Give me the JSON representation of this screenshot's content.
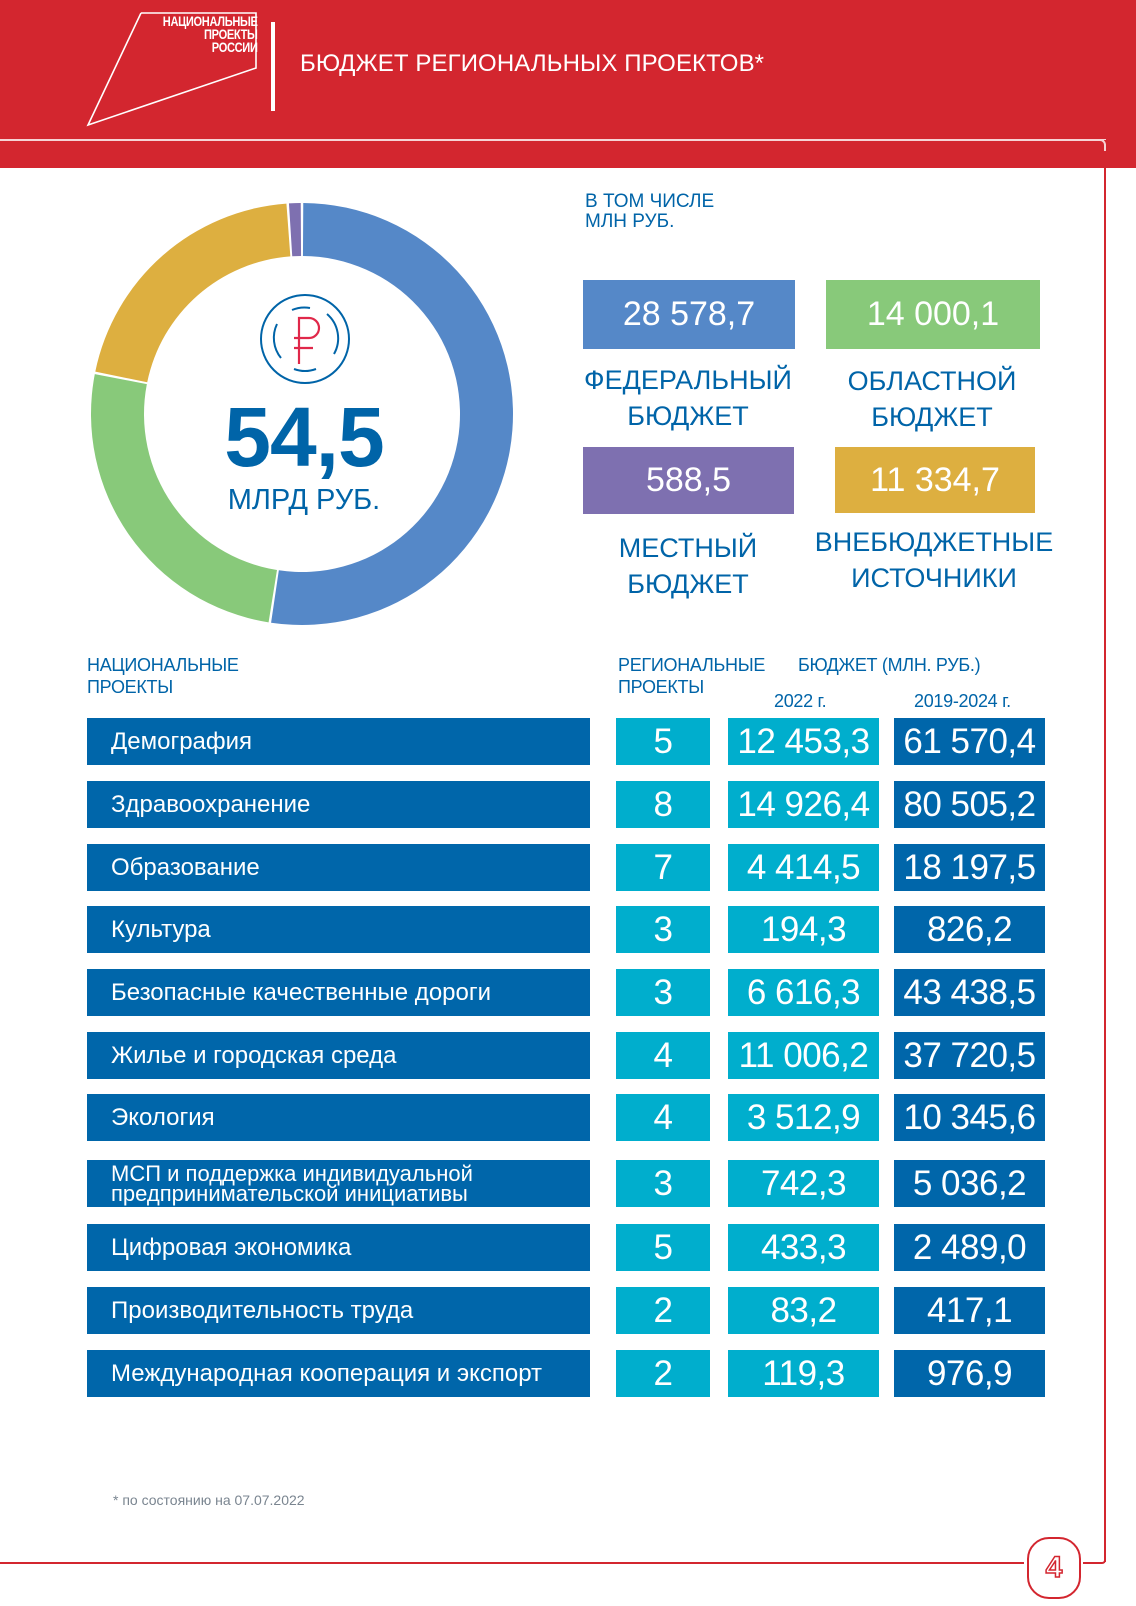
{
  "header": {
    "logo_lines": [
      "НАЦИОНАЛЬНЫЕ",
      "ПРОЕКТЫ",
      "РОССИИ"
    ],
    "title": "БЮДЖЕТ РЕГИОНАЛЬНЫХ ПРОЕКТОВ*"
  },
  "summary": {
    "total": "54,5",
    "total_unit": "МЛРД РУБ.",
    "icon": "ruble-coin-icon"
  },
  "legend": {
    "caption_line1": "В ТОМ ЧИСЛЕ",
    "caption_line2": "МЛН РУБ.",
    "items": [
      {
        "value": "28 578,7",
        "label_line1": "ФЕДЕРАЛЬНЫЙ",
        "label_line2": "БЮДЖЕТ",
        "color": "#5588C8"
      },
      {
        "value": "14 000,1",
        "label_line1": "ОБЛАСТНОЙ",
        "label_line2": "БЮДЖЕТ",
        "color": "#88C97A"
      },
      {
        "value": "588,5",
        "label_line1": "МЕСТНЫЙ",
        "label_line2": "БЮДЖЕТ",
        "color": "#7E70B0"
      },
      {
        "value": "11 334,7",
        "label_line1": "ВНЕБЮДЖЕТНЫЕ",
        "label_line2": "ИСТОЧНИКИ",
        "color": "#DDAF40"
      }
    ]
  },
  "chart_data": {
    "type": "pie",
    "subtype": "donut",
    "title": "54,5 МЛРД РУБ.",
    "unit": "млн руб.",
    "categories": [
      "Федеральный бюджет",
      "Областной бюджет",
      "Внебюджетные источники",
      "Местный бюджет"
    ],
    "values": [
      28578.7,
      14000.1,
      11334.7,
      588.5
    ],
    "colors": [
      "#5588C8",
      "#88C97A",
      "#DDAF40",
      "#7E70B0"
    ],
    "start": "top",
    "direction": "clockwise",
    "legend": "right"
  },
  "table": {
    "headers": {
      "national_line1": "НАЦИОНАЛЬНЫЕ",
      "national_line2": "ПРОЕКТЫ",
      "regional_line1": "РЕГИОНАЛЬНЫЕ",
      "regional_line2": "ПРОЕКТЫ",
      "budget": "БЮДЖЕТ (МЛН. РУБ.)",
      "year_2022": "2022 г.",
      "years_2019_2024": "2019-2024 г."
    },
    "rows": [
      {
        "name": "Демография",
        "regional": "5",
        "b2022": "12 453,3",
        "b2019_2024": "61 570,4"
      },
      {
        "name": "Здравоохранение",
        "regional": "8",
        "b2022": "14 926,4",
        "b2019_2024": "80 505,2"
      },
      {
        "name": "Образование",
        "regional": "7",
        "b2022": "4 414,5",
        "b2019_2024": "18 197,5"
      },
      {
        "name": "Культура",
        "regional": "3",
        "b2022": "194,3",
        "b2019_2024": "826,2"
      },
      {
        "name": "Безопасные качественные дороги",
        "regional": "3",
        "b2022": "6 616,3",
        "b2019_2024": "43 438,5"
      },
      {
        "name": "Жилье и городская среда",
        "regional": "4",
        "b2022": "11 006,2",
        "b2019_2024": "37 720,5"
      },
      {
        "name": "Экология",
        "regional": "4",
        "b2022": "3 512,9",
        "b2019_2024": "10 345,6"
      },
      {
        "name_line1": "МСП и поддержка индивидуальной",
        "name_line2": "предпринимательской инициативы",
        "regional": "3",
        "b2022": "742,3",
        "b2019_2024": "5 036,2"
      },
      {
        "name": "Цифровая экономика",
        "regional": "5",
        "b2022": "433,3",
        "b2019_2024": "2 489,0"
      },
      {
        "name": "Производительность труда",
        "regional": "2",
        "b2022": "83,2",
        "b2019_2024": "417,1"
      },
      {
        "name": "Международная кооперация и экспорт",
        "regional": "2",
        "b2022": "119,3",
        "b2019_2024": "976,9"
      }
    ]
  },
  "footer": {
    "footnote": "* по состоянию на 07.07.2022",
    "page_number": "4"
  },
  "colors": {
    "brand_red": "#D3262F",
    "dark_blue": "#0066AA",
    "cyan": "#00AECD",
    "text_blue": "#0064A8"
  }
}
